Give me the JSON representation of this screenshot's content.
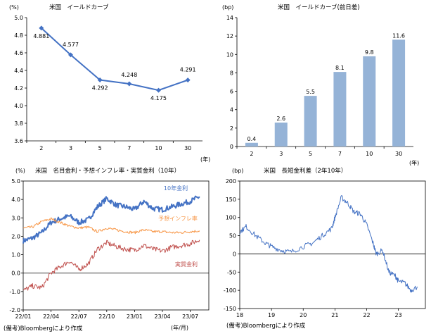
{
  "colors": {
    "curve_line": "#4472C4",
    "bar_fill": "#95B3D7",
    "nominal": "#4472C4",
    "inflation": "#F79646",
    "real": "#C0504D",
    "spread": "#4472C4",
    "axis": "#000000"
  },
  "panels": {
    "yield_curve": {
      "title": "米国　イールドカーブ",
      "yunit": "(%)",
      "xunit": "(年)"
    },
    "yield_change": {
      "title": "米国　イールドカーブ(前日差)",
      "yunit": "(bp)",
      "xunit": "(年)"
    },
    "rates": {
      "title": "米国　名目金利・予想インフレ率・実質金利（10年）",
      "yunit": "(%)",
      "xunit": "(年/月)",
      "source": "(備考)Bloombergにより作成"
    },
    "spread": {
      "title": "米国　長短金利差（2年10年）",
      "yunit": "(bp)",
      "source": "(備考)Bloombergにより作成"
    }
  },
  "chart_data": [
    {
      "id": "yield_curve",
      "type": "line",
      "title": "米国　イールドカーブ",
      "ylabel": "(%)",
      "xlabel": "(年)",
      "categories": [
        "2",
        "3",
        "5",
        "7",
        "10",
        "30"
      ],
      "series": [
        {
          "values": [
            4.881,
            4.577,
            4.292,
            4.248,
            4.175,
            4.291
          ]
        }
      ],
      "data_labels": [
        "4.881",
        "4.577",
        "4.292",
        "4.248",
        "4.175",
        "4.291"
      ],
      "ylim": [
        3.6,
        5.0
      ],
      "yticks": [
        "3.6",
        "3.8",
        "4.0",
        "4.2",
        "4.4",
        "4.6",
        "4.8",
        "5.0"
      ],
      "grid": false
    },
    {
      "id": "yield_change",
      "type": "bar",
      "title": "米国　イールドカーブ(前日差)",
      "ylabel": "(bp)",
      "xlabel": "(年)",
      "categories": [
        "2",
        "3",
        "5",
        "7",
        "10",
        "30"
      ],
      "values": [
        0.4,
        2.6,
        5.5,
        8.1,
        9.8,
        11.6
      ],
      "data_labels": [
        "0.4",
        "2.6",
        "5.5",
        "8.1",
        "9.8",
        "11.6"
      ],
      "ylim": [
        0,
        14
      ],
      "yticks": [
        "0",
        "2",
        "4",
        "6",
        "8",
        "10",
        "12",
        "14"
      ],
      "grid": false
    },
    {
      "id": "rates",
      "type": "line",
      "title": "米国　名目金利・予想インフレ率・実質金利（10年）",
      "ylabel": "(%)",
      "xlabel": "(年/月)",
      "categories": [
        "22/01",
        "22/04",
        "22/07",
        "22/10",
        "23/01",
        "23/04",
        "23/07"
      ],
      "x_end": "23/09",
      "ylim": [
        -2.0,
        5.0
      ],
      "yticks": [
        "-2.0",
        "-1.0",
        "0.0",
        "1.0",
        "2.0",
        "3.0",
        "4.0",
        "5.0"
      ],
      "series": [
        {
          "name": "10年金利",
          "x": [
            "22/01",
            "22/02",
            "22/03",
            "22/04",
            "22/05",
            "22/06",
            "22/07",
            "22/08",
            "22/09",
            "22/10",
            "22/11",
            "22/12",
            "23/01",
            "23/02",
            "23/03",
            "23/04",
            "23/05",
            "23/06",
            "23/07",
            "23/08"
          ],
          "values": [
            1.75,
            1.9,
            2.2,
            2.75,
            2.95,
            3.1,
            2.75,
            2.9,
            3.6,
            4.05,
            3.7,
            3.6,
            3.45,
            3.9,
            3.5,
            3.45,
            3.6,
            3.75,
            3.9,
            4.15
          ]
        },
        {
          "name": "予想インフレ率",
          "x": [
            "22/01",
            "22/02",
            "22/03",
            "22/04",
            "22/05",
            "22/06",
            "22/07",
            "22/08",
            "22/09",
            "22/10",
            "22/11",
            "22/12",
            "23/01",
            "23/02",
            "23/03",
            "23/04",
            "23/05",
            "23/06",
            "23/07",
            "23/08"
          ],
          "values": [
            2.45,
            2.5,
            2.8,
            2.95,
            2.75,
            2.55,
            2.45,
            2.5,
            2.25,
            2.45,
            2.35,
            2.25,
            2.2,
            2.35,
            2.25,
            2.25,
            2.2,
            2.2,
            2.25,
            2.3
          ]
        },
        {
          "name": "実質金利",
          "x": [
            "22/01",
            "22/02",
            "22/03",
            "22/04",
            "22/05",
            "22/06",
            "22/07",
            "22/08",
            "22/09",
            "22/10",
            "22/11",
            "22/12",
            "23/01",
            "23/02",
            "23/03",
            "23/04",
            "23/05",
            "23/06",
            "23/07",
            "23/08"
          ],
          "values": [
            -0.95,
            -0.7,
            -0.8,
            0.0,
            0.35,
            0.65,
            0.2,
            0.5,
            1.3,
            1.65,
            1.45,
            1.3,
            1.25,
            1.5,
            1.3,
            1.2,
            1.4,
            1.5,
            1.6,
            1.8
          ]
        }
      ],
      "legend_placement": "inline labels",
      "grid": false
    },
    {
      "id": "spread",
      "type": "line",
      "title": "米国　長短金利差（2年10年）",
      "ylabel": "(bp)",
      "categories": [
        "18",
        "19",
        "20",
        "21",
        "22",
        "23"
      ],
      "ylim": [
        -150,
        200
      ],
      "yticks": [
        "-150",
        "-100",
        "-50",
        "0",
        "50",
        "100",
        "150",
        "200"
      ],
      "series": [
        {
          "x": [
            "18.0",
            "18.2",
            "18.5",
            "18.8",
            "19.0",
            "19.3",
            "19.6",
            "20.0",
            "20.3",
            "20.6",
            "20.9",
            "21.0",
            "21.2",
            "21.4",
            "21.6",
            "21.8",
            "22.0",
            "22.2",
            "22.3",
            "22.5",
            "22.7",
            "22.9",
            "23.0",
            "23.2",
            "23.4",
            "23.6"
          ],
          "values": [
            60,
            75,
            50,
            30,
            20,
            10,
            5,
            20,
            30,
            50,
            70,
            100,
            155,
            140,
            115,
            110,
            80,
            30,
            0,
            10,
            -50,
            -60,
            -75,
            -80,
            -100,
            -90
          ]
        }
      ],
      "grid": false
    }
  ]
}
